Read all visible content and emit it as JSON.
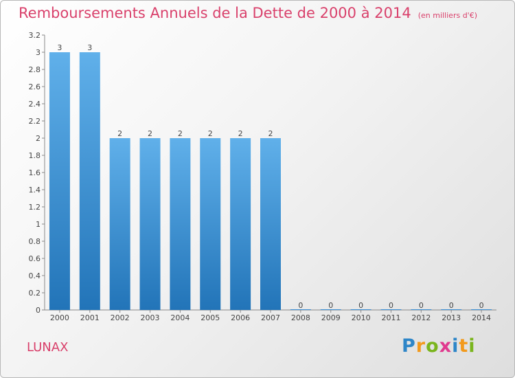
{
  "chart_data": {
    "type": "bar",
    "title": "Remboursements Annuels de la Dette de 2000 à 2014",
    "subtitle": "(en milliers d'€)",
    "categories": [
      "2000",
      "2001",
      "2002",
      "2003",
      "2004",
      "2005",
      "2006",
      "2007",
      "2008",
      "2009",
      "2010",
      "2011",
      "2012",
      "2013",
      "2014"
    ],
    "values": [
      3,
      3,
      2,
      2,
      2,
      2,
      2,
      2,
      0,
      0,
      0,
      0,
      0,
      0,
      0
    ],
    "ylim": [
      0,
      3.2
    ],
    "yticks": [
      "0",
      "0.2",
      "0.4",
      "0.6",
      "0.8",
      "1",
      "1.2",
      "1.4",
      "1.6",
      "1.8",
      "2",
      "2.2",
      "2.4",
      "2.6",
      "2.8",
      "3",
      "3.2"
    ],
    "xlabel": "",
    "ylabel": "",
    "grid": false,
    "bar_color": "#3a8fd6"
  },
  "commune": "LUNAX",
  "logo": {
    "letters": [
      "P",
      "r",
      "o",
      "x",
      "i",
      "t",
      "i"
    ],
    "colors": [
      "#2e86c8",
      "#f29a1d",
      "#7ab51d",
      "#e03a8f",
      "#2e86c8",
      "#f29a1d",
      "#7ab51d"
    ]
  }
}
